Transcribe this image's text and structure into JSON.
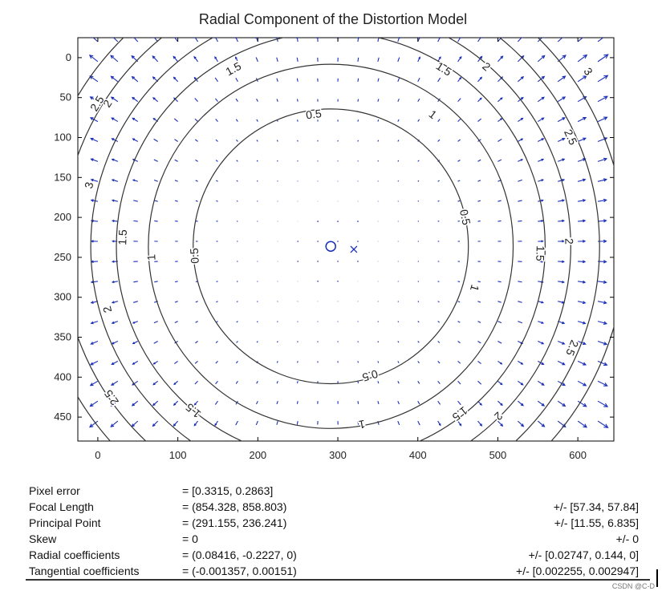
{
  "chart_data": {
    "type": "vector-field-contour",
    "title": "Radial Component of the Distortion Model",
    "xlim": [
      -25,
      645
    ],
    "ylim": [
      480,
      -25
    ],
    "x_ticks": [
      0,
      100,
      200,
      300,
      400,
      500,
      600
    ],
    "y_ticks": [
      0,
      50,
      100,
      150,
      200,
      250,
      300,
      350,
      400,
      450
    ],
    "principal_point": [
      291.155,
      236.241
    ],
    "image_center": [
      320,
      240
    ],
    "contour_levels": [
      0.5,
      1,
      1.5,
      2,
      2.5,
      3
    ],
    "contour_labels": [
      {
        "text": "0.5",
        "x": 270,
        "y": 72
      },
      {
        "text": "0.5",
        "x": 122,
        "y": 248
      },
      {
        "text": "0.5",
        "x": 458,
        "y": 200
      },
      {
        "text": "0.5",
        "x": 340,
        "y": 397
      },
      {
        "text": "1",
        "x": 418,
        "y": 72
      },
      {
        "text": "1",
        "x": 68,
        "y": 250
      },
      {
        "text": "1",
        "x": 470,
        "y": 288
      },
      {
        "text": "1",
        "x": 330,
        "y": 458
      },
      {
        "text": "1.5",
        "x": 170,
        "y": 15
      },
      {
        "text": "1.5",
        "x": 432,
        "y": 15
      },
      {
        "text": "1.5",
        "x": 32,
        "y": 225
      },
      {
        "text": "1.5",
        "x": 552,
        "y": 245
      },
      {
        "text": "1.5",
        "x": 120,
        "y": 441
      },
      {
        "text": "1.5",
        "x": 452,
        "y": 445
      },
      {
        "text": "2",
        "x": 13,
        "y": 58
      },
      {
        "text": "2",
        "x": 485,
        "y": 12
      },
      {
        "text": "2",
        "x": 13,
        "y": 315
      },
      {
        "text": "2",
        "x": 588,
        "y": 230
      },
      {
        "text": "2",
        "x": 500,
        "y": 448
      },
      {
        "text": "2.5",
        "x": 0,
        "y": 58
      },
      {
        "text": "2.5",
        "x": 590,
        "y": 100
      },
      {
        "text": "2.5",
        "x": 18,
        "y": 425
      },
      {
        "text": "2.5",
        "x": 592,
        "y": 363
      },
      {
        "text": "3",
        "x": -10,
        "y": 160
      },
      {
        "text": "3",
        "x": 612,
        "y": 18
      }
    ],
    "arrow_color": "#1a2fb8",
    "contour_color": "#333333"
  },
  "params": [
    {
      "name": "Pixel error",
      "value": "= [0.3315, 0.2863]",
      "err": ""
    },
    {
      "name": "Focal Length",
      "value": "= (854.328, 858.803)",
      "err": "+/- [57.34, 57.84]"
    },
    {
      "name": "Principal Point",
      "value": "= (291.155, 236.241)",
      "err": "+/- [11.55, 6.835]"
    },
    {
      "name": "Skew",
      "value": "= 0",
      "err": "+/- 0"
    },
    {
      "name": "Radial coefficients",
      "value": "= (0.08416, -0.2227, 0)",
      "err": "+/- [0.02747, 0.144, 0]"
    },
    {
      "name": "Tangential coefficients",
      "value": "= (-0.001357, 0.00151)",
      "err": "+/- [0.002255, 0.002947]"
    }
  ],
  "watermark": "CSDN @C-D"
}
